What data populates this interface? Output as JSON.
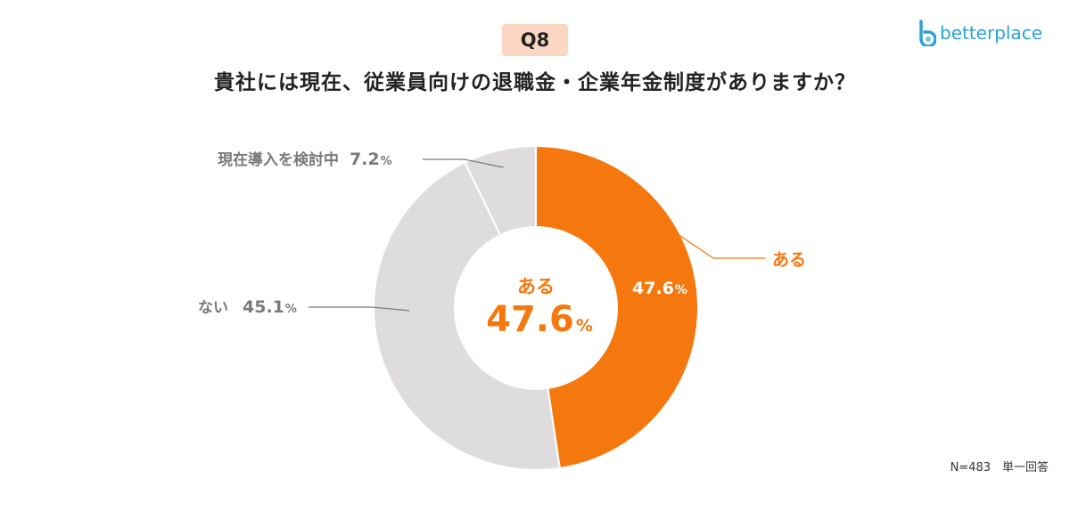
{
  "header": {
    "badge": "Q8",
    "title": "貴社には現在、従業員向けの退職金・企業年金制度がありますか？",
    "logo_text": "betterplace"
  },
  "chart_data": {
    "type": "pie",
    "donut": true,
    "slices": [
      {
        "label": "ある",
        "value": 47.6,
        "color": "#f5780f"
      },
      {
        "label": "ない",
        "value": 45.1,
        "color": "#dedcdc"
      },
      {
        "label": "現在導入を検討中",
        "value": 7.2,
        "color": "#dedcdc"
      }
    ],
    "value_labels": {
      "ある": {
        "num": "47.6",
        "pct": "%"
      },
      "ない": {
        "num": "45.1",
        "pct": "%"
      },
      "現在導入を検討中": {
        "num": "7.2",
        "pct": "%"
      }
    },
    "center": {
      "label": "ある",
      "value_num": "47.6",
      "value_pct": "%"
    },
    "inner_value_label": {
      "num": "47.6",
      "pct": "%"
    }
  },
  "footnote": "N=483　単一回答",
  "colors": {
    "accent": "#f5780f",
    "neutral": "#dedcdc",
    "text_gray": "#7a7a7a",
    "badge_bg": "#fbd7c3"
  }
}
